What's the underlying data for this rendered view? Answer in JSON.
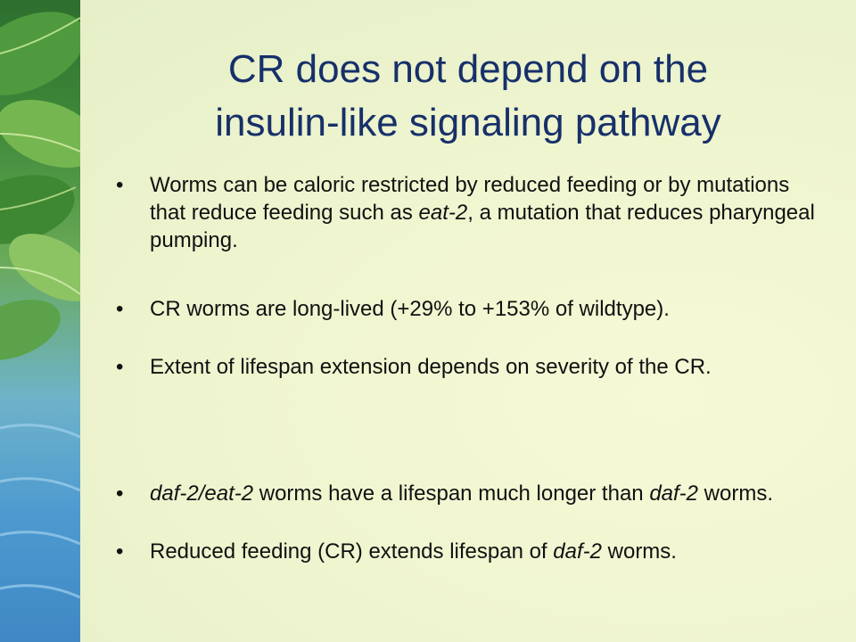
{
  "slide": {
    "title_line1": "CR does not depend on the",
    "title_line2": "insulin-like signaling pathway",
    "bullet_char": "•",
    "bullets": [
      [
        {
          "t": "Worms can be caloric restricted by reduced feeding or by mutations that reduce feeding such as ",
          "i": false
        },
        {
          "t": "eat-2",
          "i": true
        },
        {
          "t": ", a mutation that reduces pharyngeal pumping.",
          "i": false
        }
      ],
      [
        {
          "t": "CR worms are long-lived (+29% to +153% of wildtype).",
          "i": false
        }
      ],
      [
        {
          "t": "Extent of lifespan extension depends on severity of the CR.",
          "i": false
        }
      ],
      [
        {
          "t": "daf-2/eat-2",
          "i": true
        },
        {
          "t": " worms have a lifespan much longer than ",
          "i": false
        },
        {
          "t": "daf-2",
          "i": true
        },
        {
          "t": " worms.",
          "i": false
        }
      ],
      [
        {
          "t": "Reduced feeding (CR) extends lifespan of ",
          "i": false
        },
        {
          "t": "daf-2",
          "i": true
        },
        {
          "t": " worms.",
          "i": false
        }
      ]
    ]
  },
  "colors": {
    "title": "#17306a",
    "text": "#111111",
    "background": "#eff5cf"
  },
  "decor": {
    "left_strip": "green-leaves-and-water-image"
  }
}
